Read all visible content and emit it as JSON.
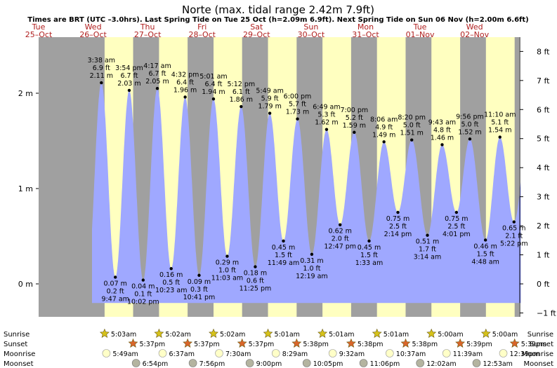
{
  "title": "Norte (max. tidal range 2.42m 7.9ft)",
  "subtitle": "Times are BRT (UTC –3.0hrs). Last Spring Tide on Tue 25 Oct (h=2.09m 6.9ft). Next Spring Tide on Sun 06 Nov (h=2.00m 6.6ft)",
  "colors": {
    "night": "#a0a0a0",
    "day": "#ffffc0",
    "water": "#9fa8ff",
    "sunrise_star": "#d6c21a",
    "sunset_star": "#d9652a",
    "moon": "#ffffc8",
    "moonset": "#b4b4a0",
    "day_label": "#b02020"
  },
  "chart_data": {
    "type": "area",
    "x_unit": "days since start of Tue 25 Oct, local time",
    "days": [
      {
        "dow": "Tue",
        "date": "25–Oct"
      },
      {
        "dow": "Wed",
        "date": "26–Oct"
      },
      {
        "dow": "Thu",
        "date": "27–Oct"
      },
      {
        "dow": "Fri",
        "date": "28–Oct"
      },
      {
        "dow": "Sat",
        "date": "29–Oct"
      },
      {
        "dow": "Sun",
        "date": "30–Oct"
      },
      {
        "dow": "Mon",
        "date": "31–Oct"
      },
      {
        "dow": "Tue",
        "date": "01–Nov"
      },
      {
        "dow": "Wed",
        "date": "02–Nov"
      }
    ],
    "y_left": {
      "unit": "m",
      "ticks": [
        {
          "v": 0,
          "label": "0 m"
        },
        {
          "v": 1,
          "label": "1 m"
        },
        {
          "v": 2,
          "label": "2 m"
        }
      ]
    },
    "y_right": {
      "unit": "ft",
      "ticks": [
        "−1 ft",
        "0 ft",
        "1 ft",
        "2 ft",
        "3 ft",
        "4 ft",
        "5 ft",
        "6 ft",
        "7 ft",
        "8 ft"
      ]
    },
    "tides": [
      {
        "t": 1.1514,
        "h": 2.11,
        "type": "high",
        "time": "3:38 am",
        "ft": "6.9 ft",
        "m": "2.11 m"
      },
      {
        "t": 1.4076,
        "h": 0.07,
        "type": "low",
        "time": "9:47 am",
        "ft": "0.2 ft",
        "m": "0.07 m"
      },
      {
        "t": 1.6625,
        "h": 2.03,
        "type": "high",
        "time": "3:54 pm",
        "ft": "6.7 ft",
        "m": "2.03 m"
      },
      {
        "t": 1.9181,
        "h": 0.04,
        "type": "low",
        "time": "10:02 pm",
        "ft": "0.1 ft",
        "m": "0.04 m"
      },
      {
        "t": 2.1785,
        "h": 2.05,
        "type": "high",
        "time": "4:17 am",
        "ft": "6.7 ft",
        "m": "2.05 m"
      },
      {
        "t": 2.4326,
        "h": 0.16,
        "type": "low",
        "time": "10:23 am",
        "ft": "0.5 ft",
        "m": "0.16 m"
      },
      {
        "t": 2.6889,
        "h": 1.96,
        "type": "high",
        "time": "4:32 pm",
        "ft": "6.4 ft",
        "m": "1.96 m"
      },
      {
        "t": 2.9451,
        "h": 0.09,
        "type": "low",
        "time": "10:41 pm",
        "ft": "0.3 ft",
        "m": "0.09 m"
      },
      {
        "t": 3.209,
        "h": 1.94,
        "type": "high",
        "time": "5:01 am",
        "ft": "6.4 ft",
        "m": "1.94 m"
      },
      {
        "t": 3.4604,
        "h": 0.29,
        "type": "low",
        "time": "11:03 am",
        "ft": "1.0 ft",
        "m": "0.29 m"
      },
      {
        "t": 3.7167,
        "h": 1.86,
        "type": "high",
        "time": "5:12 pm",
        "ft": "6.1 ft",
        "m": "1.86 m"
      },
      {
        "t": 3.9757,
        "h": 0.18,
        "type": "low",
        "time": "11:25 pm",
        "ft": "0.6 ft",
        "m": "0.18 m"
      },
      {
        "t": 4.2424,
        "h": 1.79,
        "type": "high",
        "time": "5:49 am",
        "ft": "5.9 ft",
        "m": "1.79 m"
      },
      {
        "t": 4.4924,
        "h": 0.45,
        "type": "low",
        "time": "11:49 am",
        "ft": "1.5 ft",
        "m": "0.45 m"
      },
      {
        "t": 4.75,
        "h": 1.73,
        "type": "high",
        "time": "6:00 pm",
        "ft": "5.7 ft",
        "m": "1.73 m"
      },
      {
        "t": 5.0132,
        "h": 0.31,
        "type": "low",
        "time": "12:19 am",
        "ft": "1.0 ft",
        "m": "0.31 m"
      },
      {
        "t": 5.284,
        "h": 1.62,
        "type": "high",
        "time": "6:49 am",
        "ft": "5.3 ft",
        "m": "1.62 m"
      },
      {
        "t": 5.5326,
        "h": 0.62,
        "type": "low",
        "time": "12:47 pm",
        "ft": "2.0 ft",
        "m": "0.62 m"
      },
      {
        "t": 5.7917,
        "h": 1.59,
        "type": "high",
        "time": "7:00 pm",
        "ft": "5.2 ft",
        "m": "1.59 m"
      },
      {
        "t": 6.0646,
        "h": 0.45,
        "type": "low",
        "time": "1:33 am",
        "ft": "1.5 ft",
        "m": "0.45 m"
      },
      {
        "t": 6.3375,
        "h": 1.49,
        "type": "high",
        "time": "8:06 am",
        "ft": "4.9 ft",
        "m": "1.49 m"
      },
      {
        "t": 6.5931,
        "h": 0.75,
        "type": "low",
        "time": "2:14 pm",
        "ft": "2.5 ft",
        "m": "0.75 m"
      },
      {
        "t": 6.8472,
        "h": 1.51,
        "type": "high",
        "time": "8:20 pm",
        "ft": "5.0 ft",
        "m": "1.51 m"
      },
      {
        "t": 7.1347,
        "h": 0.51,
        "type": "low",
        "time": "3:14 am",
        "ft": "1.7 ft",
        "m": "0.51 m"
      },
      {
        "t": 7.4049,
        "h": 1.46,
        "type": "high",
        "time": "9:43 am",
        "ft": "4.8 ft",
        "m": "1.46 m"
      },
      {
        "t": 7.6674,
        "h": 0.75,
        "type": "low",
        "time": "4:01 pm",
        "ft": "2.5 ft",
        "m": "0.75 m"
      },
      {
        "t": 7.9139,
        "h": 1.52,
        "type": "high",
        "time": "9:56 pm",
        "ft": "5.0 ft",
        "m": "1.52 m"
      },
      {
        "t": 8.2,
        "h": 0.46,
        "type": "low",
        "time": "4:48 am",
        "ft": "1.5 ft",
        "m": "0.46 m"
      },
      {
        "t": 8.4653,
        "h": 1.54,
        "type": "high",
        "time": "11:10 am",
        "ft": "5.1 ft",
        "m": "1.54 m"
      },
      {
        "t": 8.7236,
        "h": 0.65,
        "type": "low",
        "time": "5:22 pm",
        "ft": "2.1 ft",
        "m": "0.65 m"
      }
    ]
  },
  "astro": {
    "row_labels": [
      "Sunrise",
      "Sunset",
      "Moonrise",
      "Moonset"
    ],
    "sunrise": [
      {
        "t": 1.2104,
        "time": "5:03am"
      },
      {
        "t": 2.2097,
        "time": "5:02am"
      },
      {
        "t": 3.2097,
        "time": "5:02am"
      },
      {
        "t": 4.209,
        "time": "5:01am"
      },
      {
        "t": 5.209,
        "time": "5:01am"
      },
      {
        "t": 6.209,
        "time": "5:01am"
      },
      {
        "t": 7.2083,
        "time": "5:00am"
      },
      {
        "t": 8.2083,
        "time": "5:00am"
      }
    ],
    "sunset": [
      {
        "t": 1.734,
        "time": "5:37pm"
      },
      {
        "t": 2.734,
        "time": "5:37pm"
      },
      {
        "t": 3.734,
        "time": "5:37pm"
      },
      {
        "t": 4.7347,
        "time": "5:38pm"
      },
      {
        "t": 5.7347,
        "time": "5:38pm"
      },
      {
        "t": 6.7347,
        "time": "5:38pm"
      },
      {
        "t": 7.7354,
        "time": "5:39pm"
      },
      {
        "t": 8.7354,
        "time": "5:39pm"
      }
    ],
    "moonrise": [
      {
        "t": 1.2424,
        "time": "5:49am"
      },
      {
        "t": 2.2757,
        "time": "6:37am"
      },
      {
        "t": 3.3125,
        "time": "7:30am"
      },
      {
        "t": 4.3535,
        "time": "8:29am"
      },
      {
        "t": 5.3972,
        "time": "9:32am"
      },
      {
        "t": 6.4424,
        "time": "10:37am"
      },
      {
        "t": 7.4854,
        "time": "11:39am"
      },
      {
        "t": 8.5271,
        "time": "12:39pm"
      }
    ],
    "moonset": [
      {
        "t": 1.7875,
        "time": "6:54pm"
      },
      {
        "t": 2.8306,
        "time": "7:56pm"
      },
      {
        "t": 3.875,
        "time": "9:00pm"
      },
      {
        "t": 4.9201,
        "time": "10:05pm"
      },
      {
        "t": 5.9625,
        "time": "11:06pm"
      },
      {
        "t": 7.0014,
        "time": "12:02am"
      },
      {
        "t": 8.0368,
        "time": "12:53am"
      }
    ]
  }
}
